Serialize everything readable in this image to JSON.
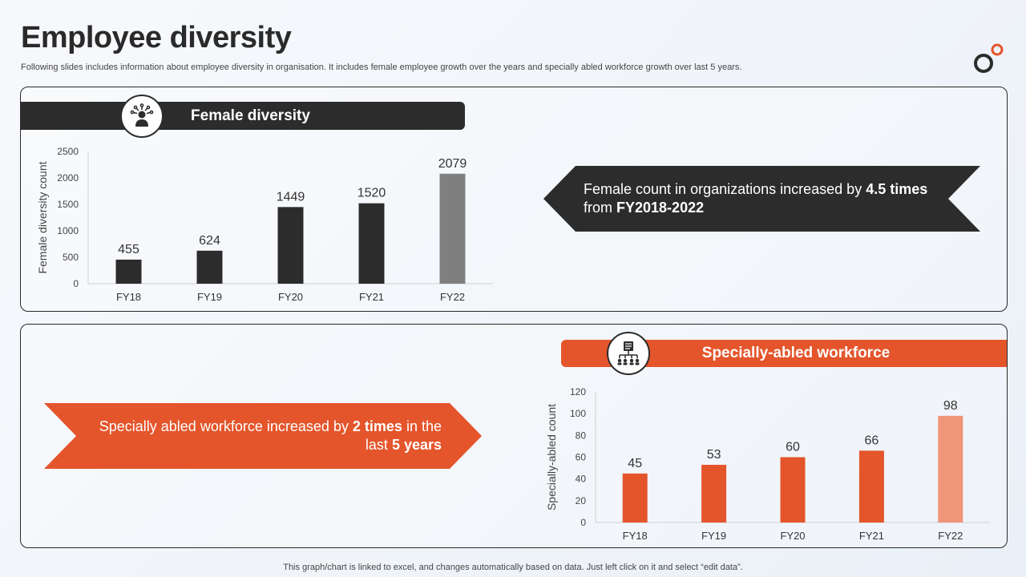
{
  "page": {
    "title": "Employee diversity",
    "subtitle": "Following slides includes information about employee diversity in organisation. It includes female employee growth over the years and specially abled workforce growth over last 5 years.",
    "footnote": "This graph/chart is linked to excel,  and changes automatically based on data. Just left click on it and select “edit data”."
  },
  "colors": {
    "dark": "#2c2c2c",
    "gray": "#7f7f7f",
    "orange": "#e4552b",
    "light_orange": "#f0957a"
  },
  "sections": {
    "female": {
      "banner": "Female diversity",
      "icon": "female-employee-icon",
      "callout_pre": "Female count in organizations increased by ",
      "callout_bold1": "4.5 times",
      "callout_mid": " from ",
      "callout_bold2": "FY2018-2022"
    },
    "abled": {
      "banner": "Specially-abled workforce",
      "icon": "workforce-hierarchy-icon",
      "callout_pre": "Specially abled workforce increased by ",
      "callout_bold1": "2 times",
      "callout_mid": " in the last ",
      "callout_bold2": "5 years"
    }
  },
  "chart_data": [
    {
      "type": "bar",
      "title": "Female diversity",
      "categories": [
        "FY18",
        "FY19",
        "FY20",
        "FY21",
        "FY22"
      ],
      "values": [
        455,
        624,
        1449,
        1520,
        2079
      ],
      "xlabel": "",
      "ylabel": "Female diversity count",
      "ylim": [
        0,
        2500
      ],
      "yticks": [
        0,
        500,
        1000,
        1500,
        2000,
        2500
      ],
      "highlight_last": true
    },
    {
      "type": "bar",
      "title": "Specially-abled workforce",
      "categories": [
        "FY18",
        "FY19",
        "FY20",
        "FY21",
        "FY22"
      ],
      "values": [
        45,
        53,
        60,
        66,
        98
      ],
      "xlabel": "",
      "ylabel": "Specially-abled count",
      "ylim": [
        0,
        120
      ],
      "yticks": [
        0,
        20,
        40,
        60,
        80,
        100,
        120
      ],
      "highlight_last": true
    }
  ]
}
